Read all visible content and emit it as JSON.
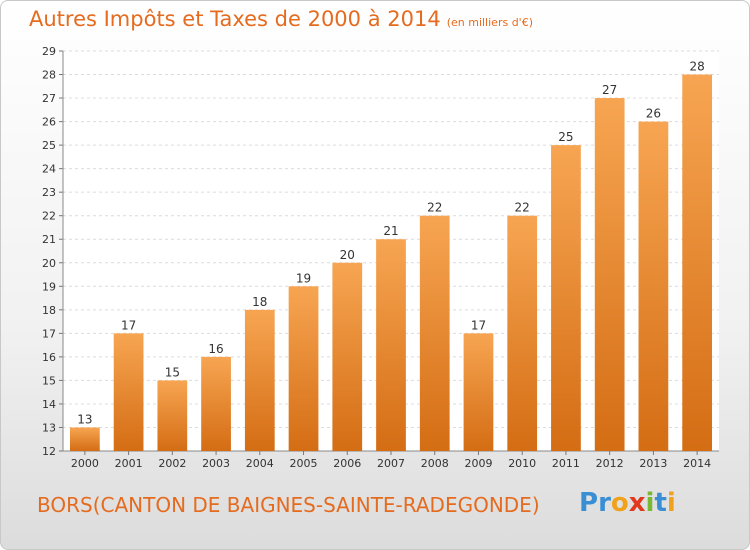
{
  "chart_data": {
    "type": "bar",
    "title": "Autres Impôts et Taxes de 2000 à 2014",
    "title_unit": "(en milliers d'€)",
    "xlabel": "",
    "ylabel": "",
    "categories": [
      "2000",
      "2001",
      "2002",
      "2003",
      "2004",
      "2005",
      "2006",
      "2007",
      "2008",
      "2009",
      "2010",
      "2011",
      "2012",
      "2013",
      "2014"
    ],
    "values": [
      13,
      17,
      15,
      16,
      18,
      19,
      20,
      21,
      22,
      17,
      22,
      25,
      27,
      26,
      28
    ],
    "ylim": [
      12,
      29
    ],
    "yticks": [
      12,
      13,
      14,
      15,
      16,
      17,
      18,
      19,
      20,
      21,
      22,
      23,
      24,
      25,
      26,
      27,
      28,
      29
    ],
    "grid": true,
    "bar_color_top": "#f7a552",
    "bar_color_bottom": "#d46d14"
  },
  "footer": {
    "commune": "BORS(CANTON DE BAIGNES-SAINTE-RADEGONDE)",
    "brand_letters": [
      {
        "ch": "P",
        "color": "#3a8fd4"
      },
      {
        "ch": "r",
        "color": "#3a8fd4"
      },
      {
        "ch": "o",
        "color": "#f0a21c"
      },
      {
        "ch": "x",
        "color": "#e2381d"
      },
      {
        "ch": "i",
        "color": "#79b833"
      },
      {
        "ch": "t",
        "color": "#3a8fd4"
      },
      {
        "ch": "i",
        "color": "#f0a21c"
      }
    ]
  },
  "colors": {
    "accent": "#e56b1f",
    "grid": "#dcdcdc",
    "axis_text": "#333333"
  }
}
